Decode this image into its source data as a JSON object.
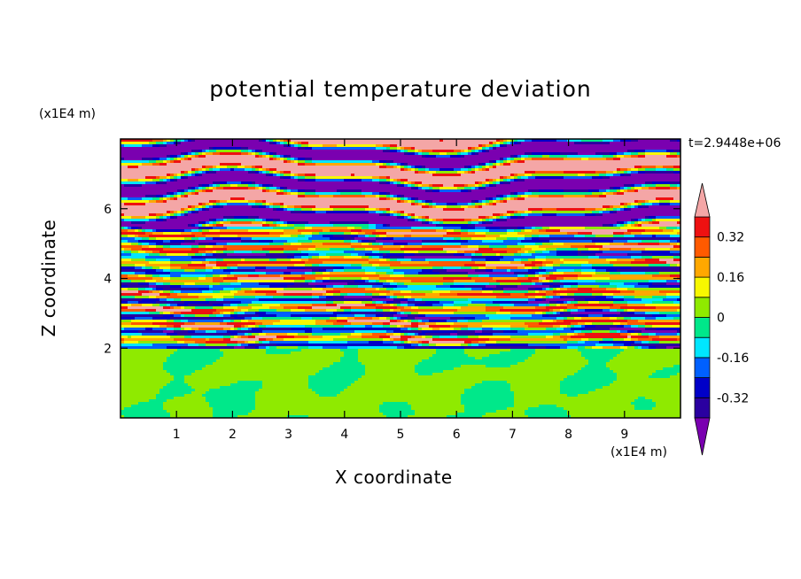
{
  "chart_data": {
    "type": "heatmap",
    "title": "potential temperature deviation",
    "xlabel": "X coordinate",
    "ylabel": "Z coordinate",
    "x_unit": "(x1E4 m)",
    "y_unit": "(x1E4 m)",
    "time_label": "t=2.9448e+06",
    "xlim": [
      0,
      10
    ],
    "ylim": [
      0,
      8
    ],
    "xticks": [
      "1",
      "2",
      "3",
      "4",
      "5",
      "6",
      "7",
      "8",
      "9"
    ],
    "yticks": [
      "2",
      "4",
      "6"
    ],
    "colorbar": {
      "levels": [
        -0.4,
        -0.32,
        -0.24,
        -0.16,
        -0.08,
        0,
        0.08,
        0.16,
        0.24,
        0.32,
        0.4
      ],
      "labels": [
        "0.32",
        "0.16",
        "0",
        "-0.16",
        "-0.32"
      ],
      "label_values": [
        0.32,
        0.16,
        0,
        -0.16,
        -0.32
      ],
      "colors": [
        "#7a00b0",
        "#2a00a0",
        "#0000c8",
        "#0060ff",
        "#00e6ff",
        "#00e88a",
        "#8fea00",
        "#f8f800",
        "#ffa800",
        "#ff5a00",
        "#ee1111",
        "#f4a6a6"
      ]
    },
    "layers": [
      {
        "z_min": 0.0,
        "z_max": 2.0,
        "description": "lower layer, values near 0 to 0.08"
      },
      {
        "z_min": 2.0,
        "z_max": 5.5,
        "description": "banded layer, values from -0.4 to 0.4"
      },
      {
        "z_min": 5.5,
        "z_max": 8.0,
        "description": "upper layer, alternating bands near -0.4 and +0.4"
      }
    ]
  }
}
